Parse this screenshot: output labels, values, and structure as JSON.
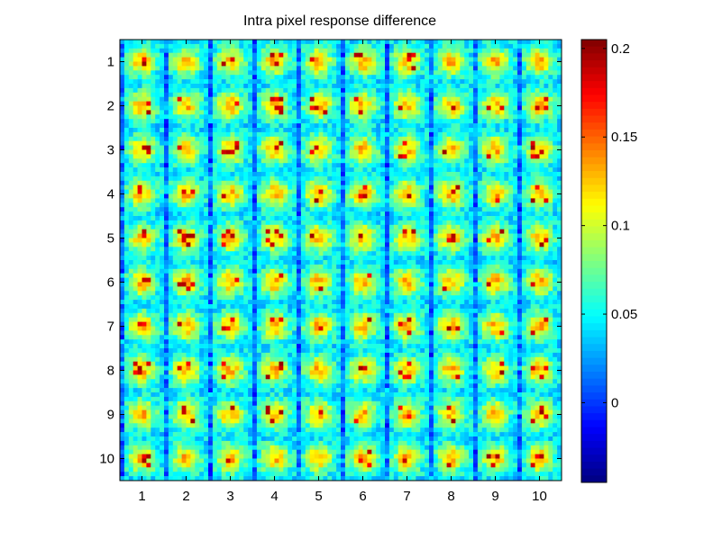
{
  "chart_data": {
    "type": "heatmap",
    "title": "Intra pixel response difference",
    "xlabel": "",
    "ylabel": "",
    "x_ticks": [
      "1",
      "2",
      "3",
      "4",
      "5",
      "6",
      "7",
      "8",
      "9",
      "10"
    ],
    "y_ticks": [
      "1",
      "2",
      "3",
      "4",
      "5",
      "6",
      "7",
      "8",
      "9",
      "10"
    ],
    "x_range": [
      0.5,
      10.5
    ],
    "y_range": [
      0.5,
      10.5
    ],
    "y_direction": "reversed",
    "grid_cells_per_pixel": 10,
    "pixel_grid": [
      10,
      10
    ],
    "colormap": "jet",
    "clim": [
      -0.045,
      0.205
    ],
    "colorbar_ticks": [
      "0",
      "0.05",
      "0.1",
      "0.15",
      "0.2"
    ],
    "colorbar_values": [
      0,
      0.05,
      0.1,
      0.15,
      0.2
    ],
    "pattern": {
      "center_value": 0.13,
      "center_peak_max": 0.2,
      "edge_value": 0.04,
      "column_gap_value": 0.0,
      "noise": 0.02
    },
    "legend": "colorbar-right"
  }
}
